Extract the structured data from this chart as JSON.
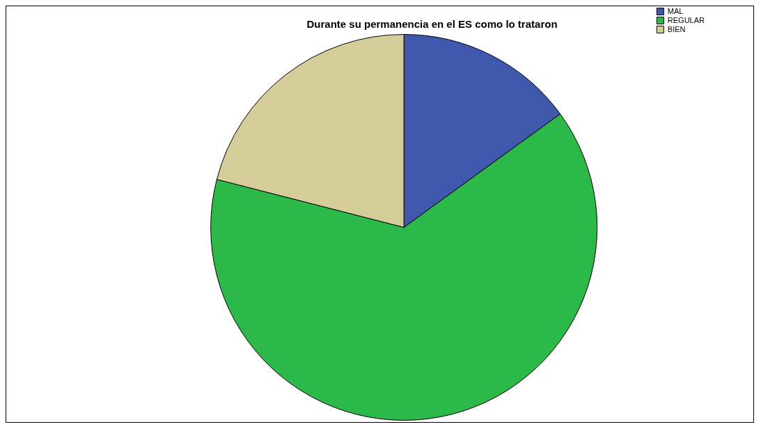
{
  "chart_data": {
    "type": "pie",
    "title": "Durante su permanencia en el ES como lo trataron",
    "categories": [
      "MAL",
      "REGULAR",
      "BIEN"
    ],
    "values": [
      15,
      64,
      21
    ],
    "colors": [
      "#3f58ac",
      "#2db84a",
      "#d4cd9a"
    ],
    "legend": "top right"
  }
}
